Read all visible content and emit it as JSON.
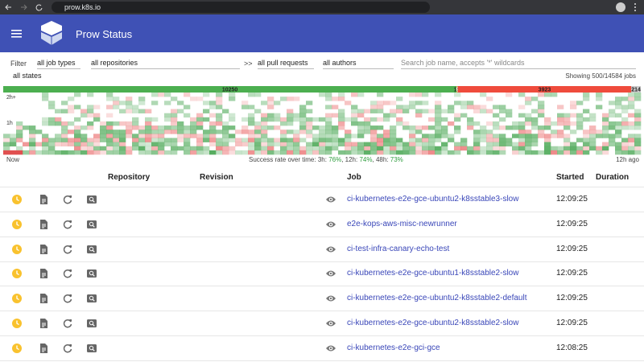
{
  "browser": {
    "url": "prow.k8s.io"
  },
  "header": {
    "title": "Prow Status"
  },
  "filters": {
    "label": "Filter",
    "job_type": "all job types",
    "repository": "all repositories",
    "arrow": ">>",
    "pull_requests": "all pull requests",
    "authors": "all authors",
    "search_placeholder": "Search job name, accepts '*' wildcards",
    "state": "all states",
    "showing": "Showing 500/14584 jobs"
  },
  "status_bar": {
    "segments": [
      {
        "count": 10250,
        "color": "#4caf50"
      },
      {
        "count": 18,
        "color": "#f9b92b"
      },
      {
        "count": 9,
        "color": "#555555"
      },
      {
        "count": 3923,
        "color": "#ef4b3c"
      },
      {
        "count": 214,
        "color": "#cccccc"
      }
    ]
  },
  "heatmap": {
    "y_labels": [
      "2h+",
      "1h"
    ],
    "start": "Now",
    "end": "12h ago",
    "success_label": "Success rate over time:",
    "rates": [
      {
        "period": "3h",
        "value": "76%"
      },
      {
        "period": "12h",
        "value": "74%"
      },
      {
        "period": "48h",
        "value": "73%"
      }
    ]
  },
  "table": {
    "columns": [
      "Repository",
      "Revision",
      "Job",
      "Started",
      "Duration"
    ],
    "rows": [
      {
        "job": "ci-kubernetes-e2e-gce-ubuntu2-k8sstable3-slow",
        "started": "12:09:25"
      },
      {
        "job": "e2e-kops-aws-misc-newrunner",
        "started": "12:09:25"
      },
      {
        "job": "ci-test-infra-canary-echo-test",
        "started": "12:09:25"
      },
      {
        "job": "ci-kubernetes-e2e-gce-ubuntu1-k8sstable2-slow",
        "started": "12:09:25"
      },
      {
        "job": "ci-kubernetes-e2e-gce-ubuntu2-k8sstable2-default",
        "started": "12:09:25"
      },
      {
        "job": "ci-kubernetes-e2e-gce-ubuntu2-k8sstable2-slow",
        "started": "12:09:25"
      },
      {
        "job": "ci-kubernetes-e2e-gci-gce",
        "started": "12:08:25"
      }
    ]
  }
}
